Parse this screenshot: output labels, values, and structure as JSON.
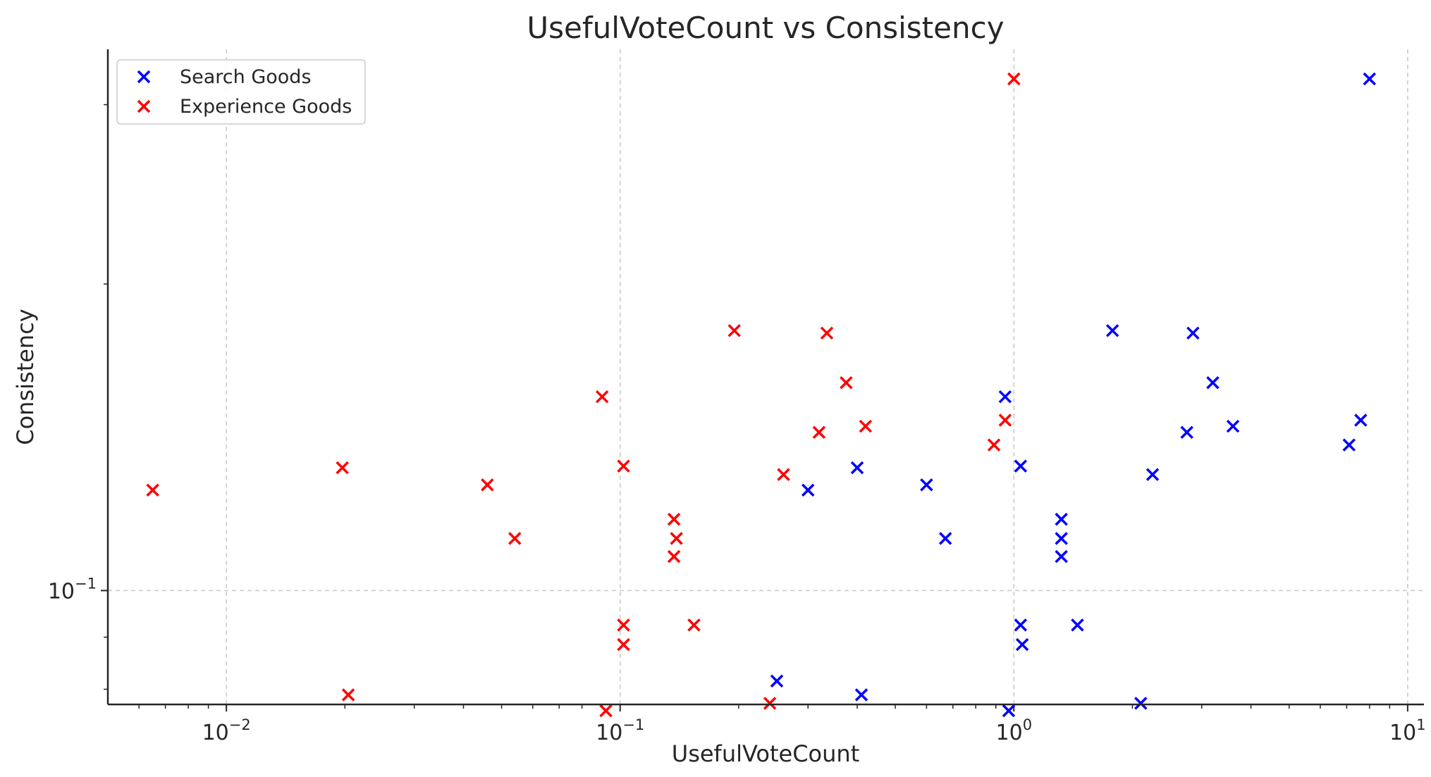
{
  "chart_data": {
    "type": "scatter",
    "title": "UsefulVoteCount vs Consistency",
    "xlabel": "UsefulVoteCount",
    "ylabel": "Consistency",
    "xscale": "log",
    "yscale": "log",
    "xlim": [
      0.005,
      11
    ],
    "ylim": [
      0.0773,
      0.34
    ],
    "x_ticks": [
      {
        "value": 0.01,
        "base": "10",
        "exp": "−2"
      },
      {
        "value": 0.1,
        "base": "10",
        "exp": "−1"
      },
      {
        "value": 1,
        "base": "10",
        "exp": "0"
      },
      {
        "value": 10,
        "base": "10",
        "exp": "1"
      }
    ],
    "y_ticks": [
      {
        "value": 0.1,
        "base": "10",
        "exp": "−1"
      }
    ],
    "grid": true,
    "marker": "x",
    "legend_position": "top-left",
    "series": [
      {
        "name": "Search Goods",
        "color": "#0000ff",
        "points": [
          {
            "x": 8.0,
            "y": 0.318
          },
          {
            "x": 1.78,
            "y": 0.18
          },
          {
            "x": 2.85,
            "y": 0.179
          },
          {
            "x": 3.2,
            "y": 0.16
          },
          {
            "x": 0.95,
            "y": 0.155
          },
          {
            "x": 7.6,
            "y": 0.147
          },
          {
            "x": 3.6,
            "y": 0.145
          },
          {
            "x": 2.75,
            "y": 0.143
          },
          {
            "x": 7.1,
            "y": 0.139
          },
          {
            "x": 0.4,
            "y": 0.132
          },
          {
            "x": 1.04,
            "y": 0.1325
          },
          {
            "x": 2.25,
            "y": 0.13
          },
          {
            "x": 0.6,
            "y": 0.127
          },
          {
            "x": 0.3,
            "y": 0.1255
          },
          {
            "x": 1.32,
            "y": 0.1175
          },
          {
            "x": 0.67,
            "y": 0.1125
          },
          {
            "x": 1.32,
            "y": 0.1125
          },
          {
            "x": 1.32,
            "y": 0.108
          },
          {
            "x": 1.04,
            "y": 0.0925
          },
          {
            "x": 1.45,
            "y": 0.0925
          },
          {
            "x": 1.05,
            "y": 0.0885
          },
          {
            "x": 0.25,
            "y": 0.0815
          },
          {
            "x": 0.41,
            "y": 0.079
          },
          {
            "x": 2.1,
            "y": 0.0775
          },
          {
            "x": 0.97,
            "y": 0.0762
          }
        ]
      },
      {
        "name": "Experience Goods",
        "color": "#ff0000",
        "points": [
          {
            "x": 1.0,
            "y": 0.318
          },
          {
            "x": 0.195,
            "y": 0.18
          },
          {
            "x": 0.335,
            "y": 0.179
          },
          {
            "x": 0.375,
            "y": 0.16
          },
          {
            "x": 0.09,
            "y": 0.155
          },
          {
            "x": 0.95,
            "y": 0.147
          },
          {
            "x": 0.42,
            "y": 0.145
          },
          {
            "x": 0.32,
            "y": 0.143
          },
          {
            "x": 0.89,
            "y": 0.139
          },
          {
            "x": 0.0197,
            "y": 0.132
          },
          {
            "x": 0.102,
            "y": 0.1325
          },
          {
            "x": 0.26,
            "y": 0.13
          },
          {
            "x": 0.046,
            "y": 0.127
          },
          {
            "x": 0.0065,
            "y": 0.1255
          },
          {
            "x": 0.137,
            "y": 0.1175
          },
          {
            "x": 0.054,
            "y": 0.1125
          },
          {
            "x": 0.139,
            "y": 0.1125
          },
          {
            "x": 0.137,
            "y": 0.108
          },
          {
            "x": 0.102,
            "y": 0.0925
          },
          {
            "x": 0.154,
            "y": 0.0925
          },
          {
            "x": 0.102,
            "y": 0.0885
          },
          {
            "x": 0.0204,
            "y": 0.079
          },
          {
            "x": 0.24,
            "y": 0.0775
          },
          {
            "x": 0.092,
            "y": 0.0762
          }
        ]
      }
    ]
  }
}
